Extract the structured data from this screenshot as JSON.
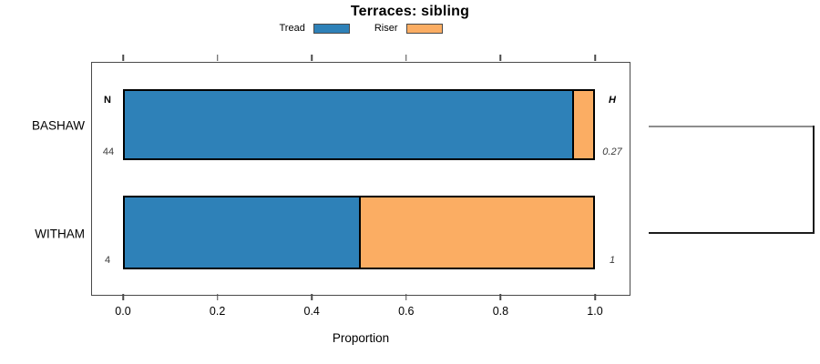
{
  "title": "Terraces: sibling",
  "legend": {
    "items": [
      {
        "label": "Tread",
        "color": "#2e81b8"
      },
      {
        "label": "Riser",
        "color": "#fbad63"
      }
    ]
  },
  "columns": {
    "n_header": "N",
    "h_header": "H"
  },
  "rows": [
    {
      "label": "BASHAW",
      "n": "44",
      "h": "0.27"
    },
    {
      "label": "WITHAM",
      "n": "4",
      "h": "1"
    }
  ],
  "axis": {
    "xlabel": "Proportion"
  },
  "colors": {
    "tread": "#2e81b8",
    "riser": "#fbad63",
    "bar_border": "#000000",
    "box_border": "#4a4a4a",
    "bracket_top": "#8d8d8d",
    "bracket_bottom": "#1c1c1c"
  },
  "chart_data": {
    "type": "bar",
    "orientation": "horizontal",
    "stacked": true,
    "title": "Terraces: sibling",
    "xlabel": "Proportion",
    "ylabel": "",
    "categories": [
      "BASHAW",
      "WITHAM"
    ],
    "series": [
      {
        "name": "Tread",
        "color": "#2e81b8",
        "values": [
          0.955,
          0.5
        ]
      },
      {
        "name": "Riser",
        "color": "#fbad63",
        "values": [
          0.045,
          0.5
        ]
      }
    ],
    "xlim": [
      0,
      1
    ],
    "x_ticks": [
      {
        "label": "0.0",
        "value": 0
      },
      {
        "label": "0.2",
        "value": 0.2
      },
      {
        "label": "0.4",
        "value": 0.4
      },
      {
        "label": "0.6",
        "value": 0.6
      },
      {
        "label": "0.8",
        "value": 0.8
      },
      {
        "label": "1.0",
        "value": 1.0
      }
    ],
    "annotations": {
      "n_header": "N",
      "h_header": "H",
      "rows": [
        {
          "category": "BASHAW",
          "n": 44,
          "h": 0.27
        },
        {
          "category": "WITHAM",
          "n": 4,
          "h": 1
        }
      ]
    },
    "legend_position": "top-center",
    "grid": false,
    "right_bracket": true
  }
}
